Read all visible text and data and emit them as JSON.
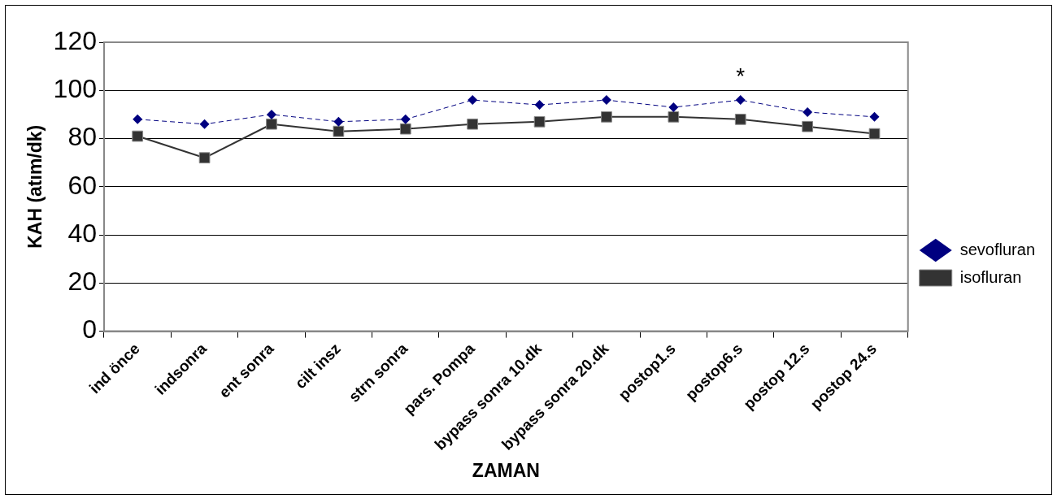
{
  "chart_data": {
    "type": "line",
    "xlabel": "ZAMAN",
    "ylabel": "KAH (atım/dk)",
    "categories": [
      "ind önce",
      "indsonra",
      "ent sonra",
      "cilt insz",
      "strn sonra",
      "pars. Pompa",
      "bypass sonra 10.dk",
      "bypass sonra 20.dk",
      "postop1.s",
      "postop6.s",
      "postop 12.s",
      "postop 24.s"
    ],
    "series": [
      {
        "name": "sevofluran",
        "color": "#000080",
        "marker": "diamond",
        "line_style": "dashed",
        "values": [
          88,
          86,
          90,
          87,
          88,
          96,
          94,
          96,
          93,
          96,
          91,
          89
        ]
      },
      {
        "name": "isofluran",
        "color": "#333333",
        "marker": "square",
        "line_style": "solid",
        "values": [
          81,
          72,
          86,
          83,
          84,
          86,
          87,
          89,
          89,
          88,
          85,
          82
        ]
      }
    ],
    "ylim": [
      0,
      120
    ],
    "yticks": [
      0,
      20,
      40,
      60,
      80,
      100,
      120
    ],
    "grid": "y",
    "legend": "right",
    "annotations": [
      {
        "text": "*",
        "x": "postop6.s",
        "y": 96
      }
    ]
  }
}
